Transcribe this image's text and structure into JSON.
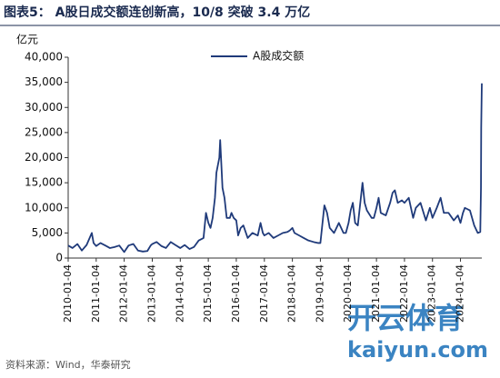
{
  "chart_data": {
    "type": "line",
    "title": "图表5： A股日成交额连创新高，10/8 突破 3.4 万亿",
    "y_unit": "亿元",
    "source": "资料来源：Wind，华泰研究",
    "watermark": [
      "开云体育",
      "kaiyun.com"
    ],
    "legend_position": "top",
    "x": [
      "2010-01-04",
      "2010-03-01",
      "2010-05-04",
      "2010-07-01",
      "2010-09-01",
      "2010-11-08",
      "2010-12-01",
      "2011-01-04",
      "2011-03-01",
      "2011-05-03",
      "2011-07-01",
      "2011-09-01",
      "2011-11-01",
      "2012-01-04",
      "2012-03-01",
      "2012-05-02",
      "2012-07-02",
      "2012-09-03",
      "2012-11-01",
      "2012-12-14",
      "2013-01-04",
      "2013-03-01",
      "2013-05-02",
      "2013-07-01",
      "2013-09-02",
      "2013-11-01",
      "2014-01-03",
      "2014-03-03",
      "2014-05-05",
      "2014-07-01",
      "2014-09-01",
      "2014-11-03",
      "2014-12-05",
      "2015-01-05",
      "2015-02-02",
      "2015-03-02",
      "2015-04-01",
      "2015-04-20",
      "2015-05-28",
      "2015-06-08",
      "2015-07-08",
      "2015-08-03",
      "2015-09-01",
      "2015-10-12",
      "2015-11-02",
      "2015-12-01",
      "2016-01-04",
      "2016-01-28",
      "2016-03-01",
      "2016-04-05",
      "2016-06-01",
      "2016-08-01",
      "2016-10-10",
      "2016-11-15",
      "2016-12-15",
      "2017-01-04",
      "2017-03-01",
      "2017-05-02",
      "2017-07-03",
      "2017-09-01",
      "2017-11-01",
      "2017-12-01",
      "2018-01-04",
      "2018-02-01",
      "2018-04-02",
      "2018-06-01",
      "2018-08-01",
      "2018-10-08",
      "2018-12-03",
      "2019-01-04",
      "2019-02-25",
      "2019-04-01",
      "2019-05-06",
      "2019-07-01",
      "2019-09-02",
      "2019-11-01",
      "2019-12-02",
      "2020-01-06",
      "2020-02-03",
      "2020-03-02",
      "2020-04-01",
      "2020-05-06",
      "2020-07-06",
      "2020-08-03",
      "2020-09-01",
      "2020-11-02",
      "2020-12-01",
      "2021-01-04",
      "2021-02-01",
      "2021-03-01",
      "2021-05-06",
      "2021-07-01",
      "2021-08-02",
      "2021-09-01",
      "2021-10-08",
      "2021-12-01",
      "2022-01-04",
      "2022-03-01",
      "2022-04-27",
      "2022-06-01",
      "2022-08-01",
      "2022-10-10",
      "2022-12-01",
      "2023-01-04",
      "2023-03-01",
      "2023-04-20",
      "2023-06-01",
      "2023-08-01",
      "2023-10-09",
      "2023-12-01",
      "2024-01-04",
      "2024-02-05",
      "2024-03-01",
      "2024-05-06",
      "2024-07-01",
      "2024-08-16",
      "2024-09-18",
      "2024-09-27",
      "2024-09-30",
      "2024-10-08"
    ],
    "series": [
      {
        "name": "A股成交额",
        "color": "#1f3a7a",
        "values": [
          2500,
          2000,
          2800,
          1500,
          2600,
          5000,
          3000,
          2400,
          3000,
          2500,
          2000,
          2200,
          2500,
          1200,
          2500,
          2800,
          1500,
          1300,
          1400,
          2500,
          2800,
          3200,
          2400,
          2000,
          3200,
          2600,
          2000,
          2600,
          1800,
          2200,
          3500,
          4000,
          9000,
          7000,
          6000,
          8000,
          12000,
          17000,
          20000,
          23500,
          14000,
          12000,
          8000,
          8000,
          9000,
          8000,
          7500,
          4500,
          6000,
          6500,
          4000,
          5000,
          4500,
          7000,
          5000,
          4500,
          5000,
          4000,
          4500,
          5000,
          5200,
          5500,
          6000,
          5000,
          4500,
          4000,
          3500,
          3200,
          3000,
          3000,
          10500,
          9000,
          6000,
          5000,
          7000,
          5000,
          5000,
          7000,
          9500,
          11000,
          7000,
          6500,
          15000,
          11000,
          9500,
          8000,
          8000,
          10000,
          12000,
          9000,
          8500,
          11000,
          13000,
          13500,
          11000,
          11500,
          11000,
          12000,
          8000,
          10000,
          11000,
          7500,
          10000,
          8000,
          10000,
          12000,
          9000,
          9000,
          7500,
          8500,
          7000,
          9000,
          10000,
          9500,
          6500,
          5000,
          5200,
          14000,
          26000,
          34800
        ]
      }
    ],
    "xlim": [
      "2010-01-04",
      "2024-10-08"
    ],
    "xticks": [
      "2010-01-04",
      "2011-01-04",
      "2012-01-04",
      "2013-01-04",
      "2014-01-04",
      "2015-01-04",
      "2016-01-04",
      "2017-01-04",
      "2018-01-04",
      "2019-01-04",
      "2020-01-04",
      "2021-01-04",
      "2022-01-04",
      "2023-01-04",
      "2024-01-04"
    ],
    "ylim": [
      0,
      40000
    ],
    "yticks": [
      0,
      {
        "value": 5000,
        "label": "5,000"
      },
      {
        "value": 10000,
        "label": "10,000"
      },
      {
        "value": 15000,
        "label": "15,000"
      },
      {
        "value": 20000,
        "label": "20,000"
      },
      {
        "value": 25000,
        "label": "25,000"
      },
      {
        "value": 30000,
        "label": "30,000"
      },
      {
        "value": 35000,
        "label": "35,000"
      },
      {
        "value": 40000,
        "label": "40,000"
      }
    ],
    "grid": false
  }
}
